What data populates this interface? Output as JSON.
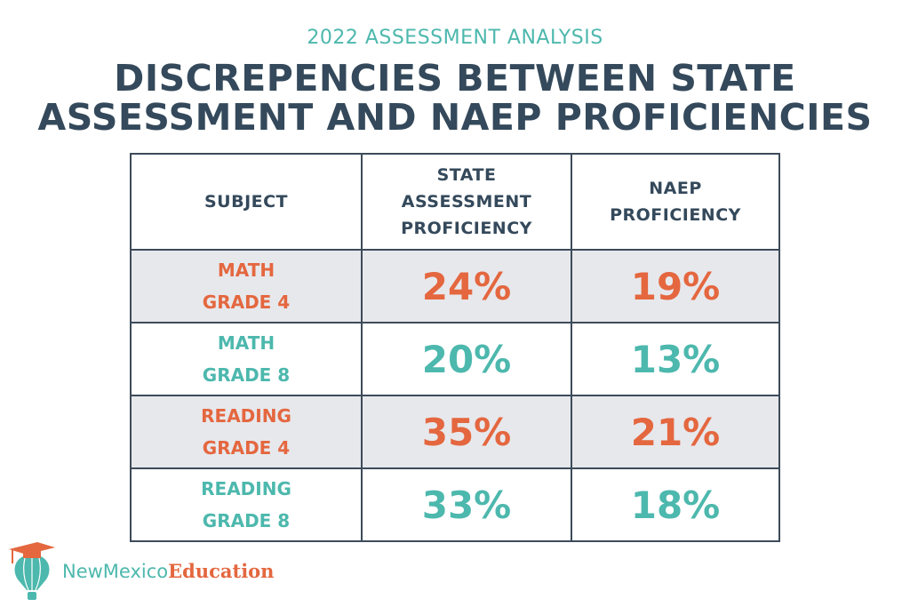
{
  "subtitle": "2022 ASSESSMENT ANALYSIS",
  "title_line1": "DISCREPENCIES BETWEEN STATE",
  "title_line2": "ASSESSMENT AND NAEP PROFICIENCIES",
  "colors": {
    "dark": "#34495b",
    "orange": "#e4673f",
    "teal": "#4db8ad",
    "shade": "#e7e8ec"
  },
  "chart_data": {
    "type": "table",
    "headers": [
      "SUBJECT",
      "STATE ASSESSMENT PROFICIENCY",
      "NAEP PROFICIENCY"
    ],
    "rows": [
      {
        "subject_l1": "MATH",
        "subject_l2": "GRADE 4",
        "state": "24%",
        "naep": "19%",
        "color": "orange"
      },
      {
        "subject_l1": "MATH",
        "subject_l2": "GRADE 8",
        "state": "20%",
        "naep": "13%",
        "color": "teal"
      },
      {
        "subject_l1": "READING",
        "subject_l2": "GRADE 4",
        "state": "35%",
        "naep": "21%",
        "color": "orange"
      },
      {
        "subject_l1": "READING",
        "subject_l2": "GRADE 8",
        "state": "33%",
        "naep": "18%",
        "color": "teal"
      }
    ]
  },
  "logo": {
    "part1": "NewMexico",
    "part2": "Education",
    "icon": "hot-air-balloon-graduation-cap-icon"
  }
}
